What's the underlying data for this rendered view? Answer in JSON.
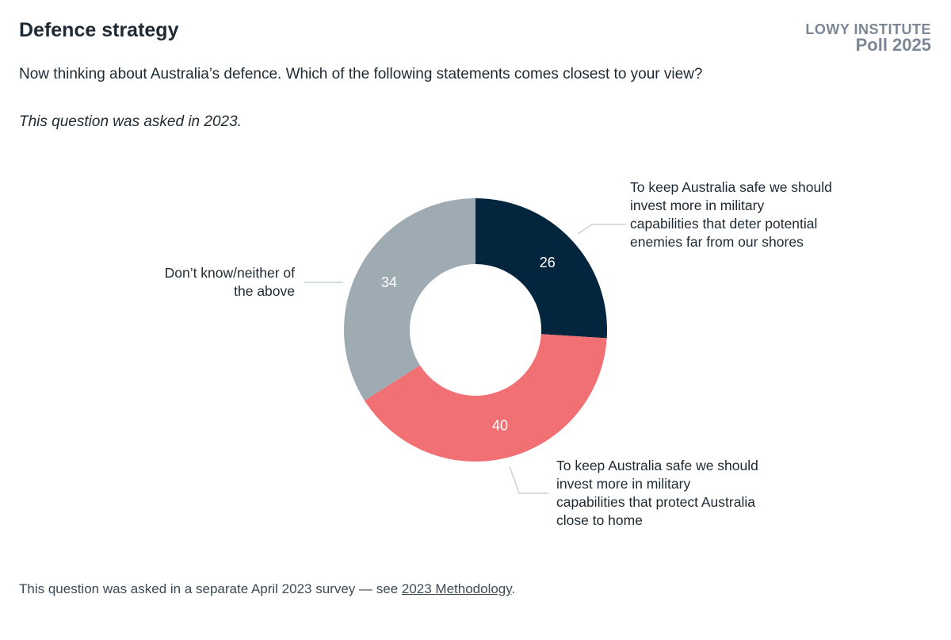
{
  "header": {
    "title": "Defence strategy",
    "brand_line1": "LOWY INSTITUTE",
    "brand_line2": "Poll 2025",
    "subtitle": "Now thinking about Australia’s defence. Which of the following statements comes closest to your view?",
    "note": "This question was asked in 2023."
  },
  "chart_data": {
    "type": "pie",
    "donut": true,
    "slices": [
      {
        "label": "To keep Australia safe we should invest more in military capabilities that deter potential enemies far from our shores",
        "value": 26,
        "color": "#03253d"
      },
      {
        "label": "To keep Australia safe we should invest more in military capabilities that protect Australia close to home",
        "value": 40,
        "color": "#f07074"
      },
      {
        "label": "Don’t know/neither of the above",
        "value": 34,
        "color": "#9eabb2"
      }
    ]
  },
  "footer": {
    "text": "This question was asked in a separate April 2023 survey — see ",
    "link": "2023 Methodology",
    "end": "."
  }
}
